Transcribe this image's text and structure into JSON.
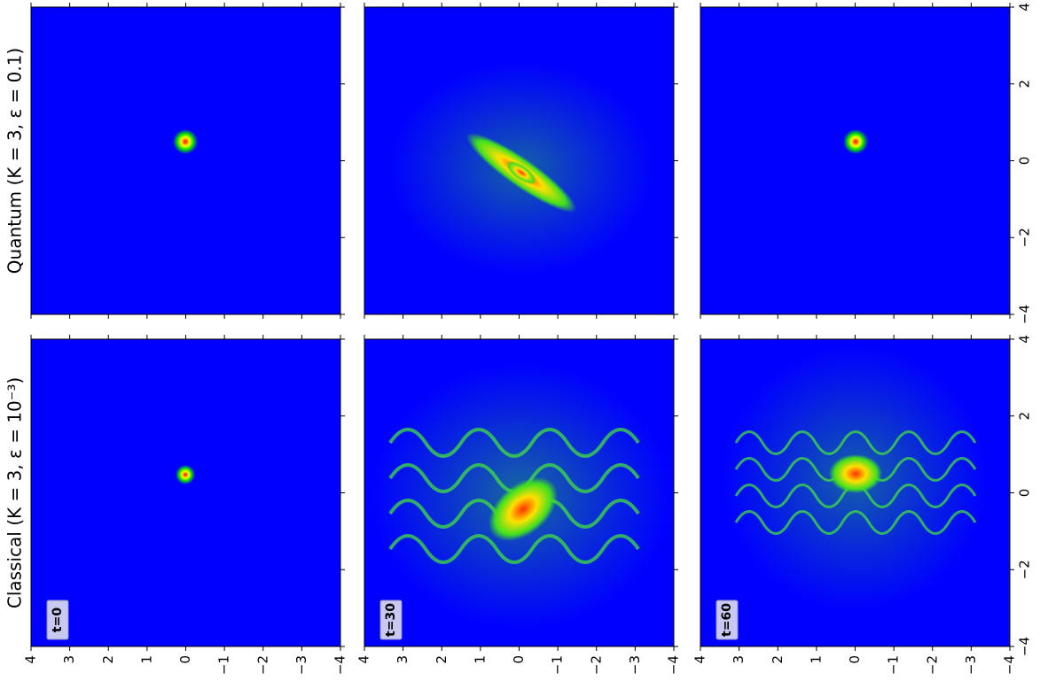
{
  "chart_data": {
    "type": "heatmap-grid",
    "row_labels": [
      "Quantum (K = 3, ε = 0.1)",
      "Classical (K = 3, ε = 10⁻³)"
    ],
    "panel_labels": [
      "t=0",
      "t=30",
      "t=60"
    ],
    "background": "#0000ff",
    "xlim": [
      4,
      -4
    ],
    "xticks": [
      4,
      3,
      2,
      1,
      0,
      {
        "value": -1,
        "label": "−1"
      },
      {
        "value": -2,
        "label": "−2"
      },
      {
        "value": -3,
        "label": "−3"
      },
      {
        "value": -4,
        "label": "−4"
      }
    ],
    "ylim": [
      -4,
      4
    ],
    "yticks": [
      {
        "value": -4,
        "label": "−4"
      },
      {
        "value": -2,
        "label": "−2"
      },
      0,
      2,
      4
    ]
  }
}
